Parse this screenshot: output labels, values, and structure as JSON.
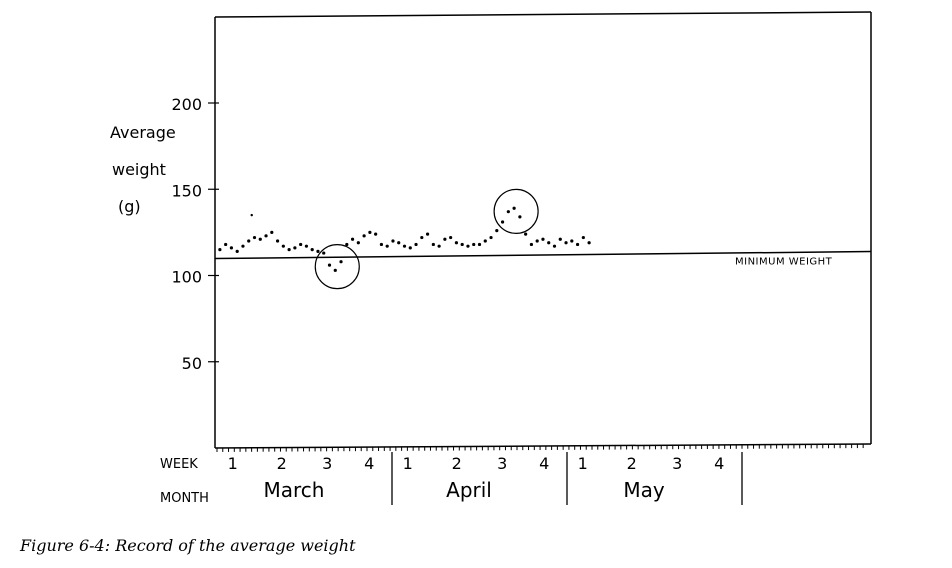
{
  "chart_data": {
    "type": "scatter",
    "ylabel_lines": [
      "Average",
      "weight",
      "(g)"
    ],
    "y_ticks": [
      50,
      100,
      150,
      200
    ],
    "ylim": [
      0,
      250
    ],
    "reference_line": {
      "value": 111,
      "label": "MINIMUM WEIGHT"
    },
    "x_row_labels": {
      "week": "WEEK",
      "month": "MONTH"
    },
    "months": [
      {
        "name": "March",
        "weeks": [
          "1",
          "2",
          "3",
          "4"
        ]
      },
      {
        "name": "April",
        "weeks": [
          "1",
          "2",
          "3",
          "4"
        ]
      },
      {
        "name": "May",
        "weeks": [
          "1",
          "2",
          "3",
          "4"
        ]
      }
    ],
    "days_total": 91,
    "points": [
      {
        "day": 1,
        "value": 115
      },
      {
        "day": 2,
        "value": 118
      },
      {
        "day": 3,
        "value": 116
      },
      {
        "day": 4,
        "value": 114
      },
      {
        "day": 5,
        "value": 117
      },
      {
        "day": 6,
        "value": 120
      },
      {
        "day": 7,
        "value": 122
      },
      {
        "day": 8,
        "value": 121
      },
      {
        "day": 9,
        "value": 123
      },
      {
        "day": 10,
        "value": 125
      },
      {
        "day": 11,
        "value": 120
      },
      {
        "day": 12,
        "value": 117
      },
      {
        "day": 13,
        "value": 115
      },
      {
        "day": 14,
        "value": 116
      },
      {
        "day": 15,
        "value": 118
      },
      {
        "day": 16,
        "value": 117
      },
      {
        "day": 17,
        "value": 115
      },
      {
        "day": 18,
        "value": 114
      },
      {
        "day": 19,
        "value": 113
      },
      {
        "day": 20,
        "value": 106
      },
      {
        "day": 21,
        "value": 103
      },
      {
        "day": 22,
        "value": 108
      },
      {
        "day": 23,
        "value": 118
      },
      {
        "day": 24,
        "value": 121
      },
      {
        "day": 25,
        "value": 119
      },
      {
        "day": 26,
        "value": 123
      },
      {
        "day": 27,
        "value": 125
      },
      {
        "day": 28,
        "value": 124
      },
      {
        "day": 29,
        "value": 118
      },
      {
        "day": 30,
        "value": 117
      },
      {
        "day": 31,
        "value": 120
      },
      {
        "day": 32,
        "value": 119
      },
      {
        "day": 33,
        "value": 117
      },
      {
        "day": 34,
        "value": 116
      },
      {
        "day": 35,
        "value": 118
      },
      {
        "day": 36,
        "value": 122
      },
      {
        "day": 37,
        "value": 124
      },
      {
        "day": 38,
        "value": 118
      },
      {
        "day": 39,
        "value": 117
      },
      {
        "day": 40,
        "value": 121
      },
      {
        "day": 41,
        "value": 122
      },
      {
        "day": 42,
        "value": 119
      },
      {
        "day": 43,
        "value": 118
      },
      {
        "day": 44,
        "value": 117
      },
      {
        "day": 45,
        "value": 118
      },
      {
        "day": 46,
        "value": 118
      },
      {
        "day": 47,
        "value": 120
      },
      {
        "day": 48,
        "value": 122
      },
      {
        "day": 49,
        "value": 126
      },
      {
        "day": 50,
        "value": 131
      },
      {
        "day": 51,
        "value": 137
      },
      {
        "day": 52,
        "value": 139
      },
      {
        "day": 53,
        "value": 134
      },
      {
        "day": 54,
        "value": 124
      },
      {
        "day": 55,
        "value": 118
      },
      {
        "day": 56,
        "value": 120
      },
      {
        "day": 57,
        "value": 121
      },
      {
        "day": 58,
        "value": 119
      },
      {
        "day": 59,
        "value": 117
      },
      {
        "day": 60,
        "value": 121
      },
      {
        "day": 61,
        "value": 119
      },
      {
        "day": 62,
        "value": 120
      },
      {
        "day": 63,
        "value": 118
      },
      {
        "day": 64,
        "value": 122
      },
      {
        "day": 65,
        "value": 119
      }
    ],
    "stray_point": {
      "day": 6,
      "value": 135
    },
    "circled_groups": [
      {
        "day": 21,
        "value": 104
      },
      {
        "day": 52,
        "value": 136
      }
    ],
    "caption": "Figure 6-4: Record of the average weight"
  }
}
